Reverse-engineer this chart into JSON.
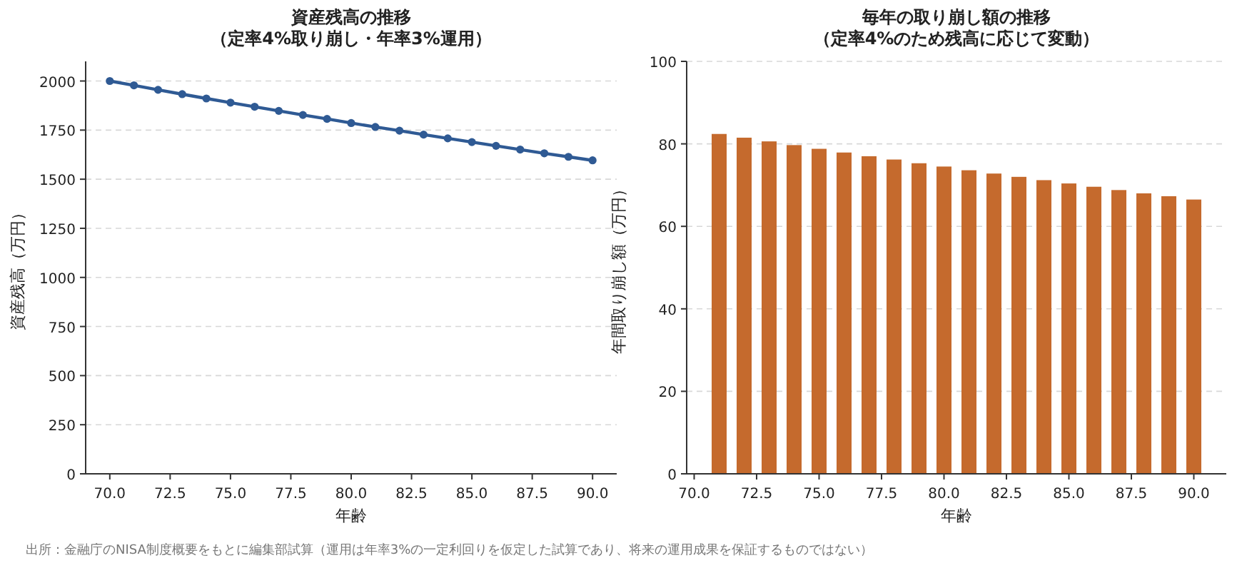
{
  "chart_data": [
    {
      "type": "line",
      "title": "資産残高の推移",
      "subtitle": "（定率4%取り崩し・年率3%運用）",
      "xlabel": "年齢",
      "ylabel": "資産残高（万円）",
      "x": [
        70,
        71,
        72,
        73,
        74,
        75,
        76,
        77,
        78,
        79,
        80,
        81,
        82,
        83,
        84,
        85,
        86,
        87,
        88,
        89,
        90
      ],
      "series": [
        {
          "color": "#2f5a94",
          "values": [
            2000,
            1978,
            1955,
            1933,
            1911,
            1890,
            1869,
            1848,
            1827,
            1807,
            1786,
            1766,
            1747,
            1727,
            1708,
            1689,
            1670,
            1651,
            1632,
            1614,
            1596
          ]
        }
      ],
      "marker": "circle",
      "line_style": "solid",
      "grid": "y",
      "xlim": [
        69,
        91
      ],
      "ylim": [
        0,
        2100
      ],
      "xticks": [
        {
          "value": 70,
          "label": "70.0"
        },
        {
          "value": 72.5,
          "label": "72.5"
        },
        {
          "value": 75,
          "label": "75.0"
        },
        {
          "value": 77.5,
          "label": "77.5"
        },
        {
          "value": 80,
          "label": "80.0"
        },
        {
          "value": 82.5,
          "label": "82.5"
        },
        {
          "value": 85,
          "label": "85.0"
        },
        {
          "value": 87.5,
          "label": "87.5"
        },
        {
          "value": 90,
          "label": "90.0"
        }
      ],
      "yticks": [
        0,
        250,
        500,
        750,
        1000,
        1250,
        1500,
        1750,
        2000
      ],
      "annotations": [
        "出所：金融庁のNISA制度概要をもとに編集部試算（運用は年率3%の一定利回りを仮定した試算であり、将来の運用成果を保証するものではない）"
      ]
    },
    {
      "type": "bar",
      "title": "毎年の取り崩し額の推移",
      "subtitle": "（定率4%のため残高に応じて変動）",
      "xlabel": "年齢",
      "ylabel": "年間取り崩し額（万円）",
      "x": [
        71,
        72,
        73,
        74,
        75,
        76,
        77,
        78,
        79,
        80,
        81,
        82,
        83,
        84,
        85,
        86,
        87,
        88,
        89,
        90
      ],
      "series": [
        {
          "color": "#c56a2d",
          "values": [
            82.4,
            81.5,
            80.6,
            79.7,
            78.8,
            77.9,
            77.0,
            76.2,
            75.3,
            74.5,
            73.6,
            72.8,
            72.0,
            71.2,
            70.4,
            69.6,
            68.8,
            68.0,
            67.3,
            66.5
          ]
        }
      ],
      "grid": "y",
      "xlim": [
        69.7,
        91.3
      ],
      "ylim": [
        0,
        100
      ],
      "xticks": [
        {
          "value": 70,
          "label": "70.0"
        },
        {
          "value": 72.5,
          "label": "72.5"
        },
        {
          "value": 75,
          "label": "75.0"
        },
        {
          "value": 77.5,
          "label": "77.5"
        },
        {
          "value": 80,
          "label": "80.0"
        },
        {
          "value": 82.5,
          "label": "82.5"
        },
        {
          "value": 85,
          "label": "85.0"
        },
        {
          "value": 87.5,
          "label": "87.5"
        },
        {
          "value": 90,
          "label": "90.0"
        }
      ],
      "yticks": [
        0,
        20,
        40,
        60,
        80,
        100
      ]
    }
  ]
}
